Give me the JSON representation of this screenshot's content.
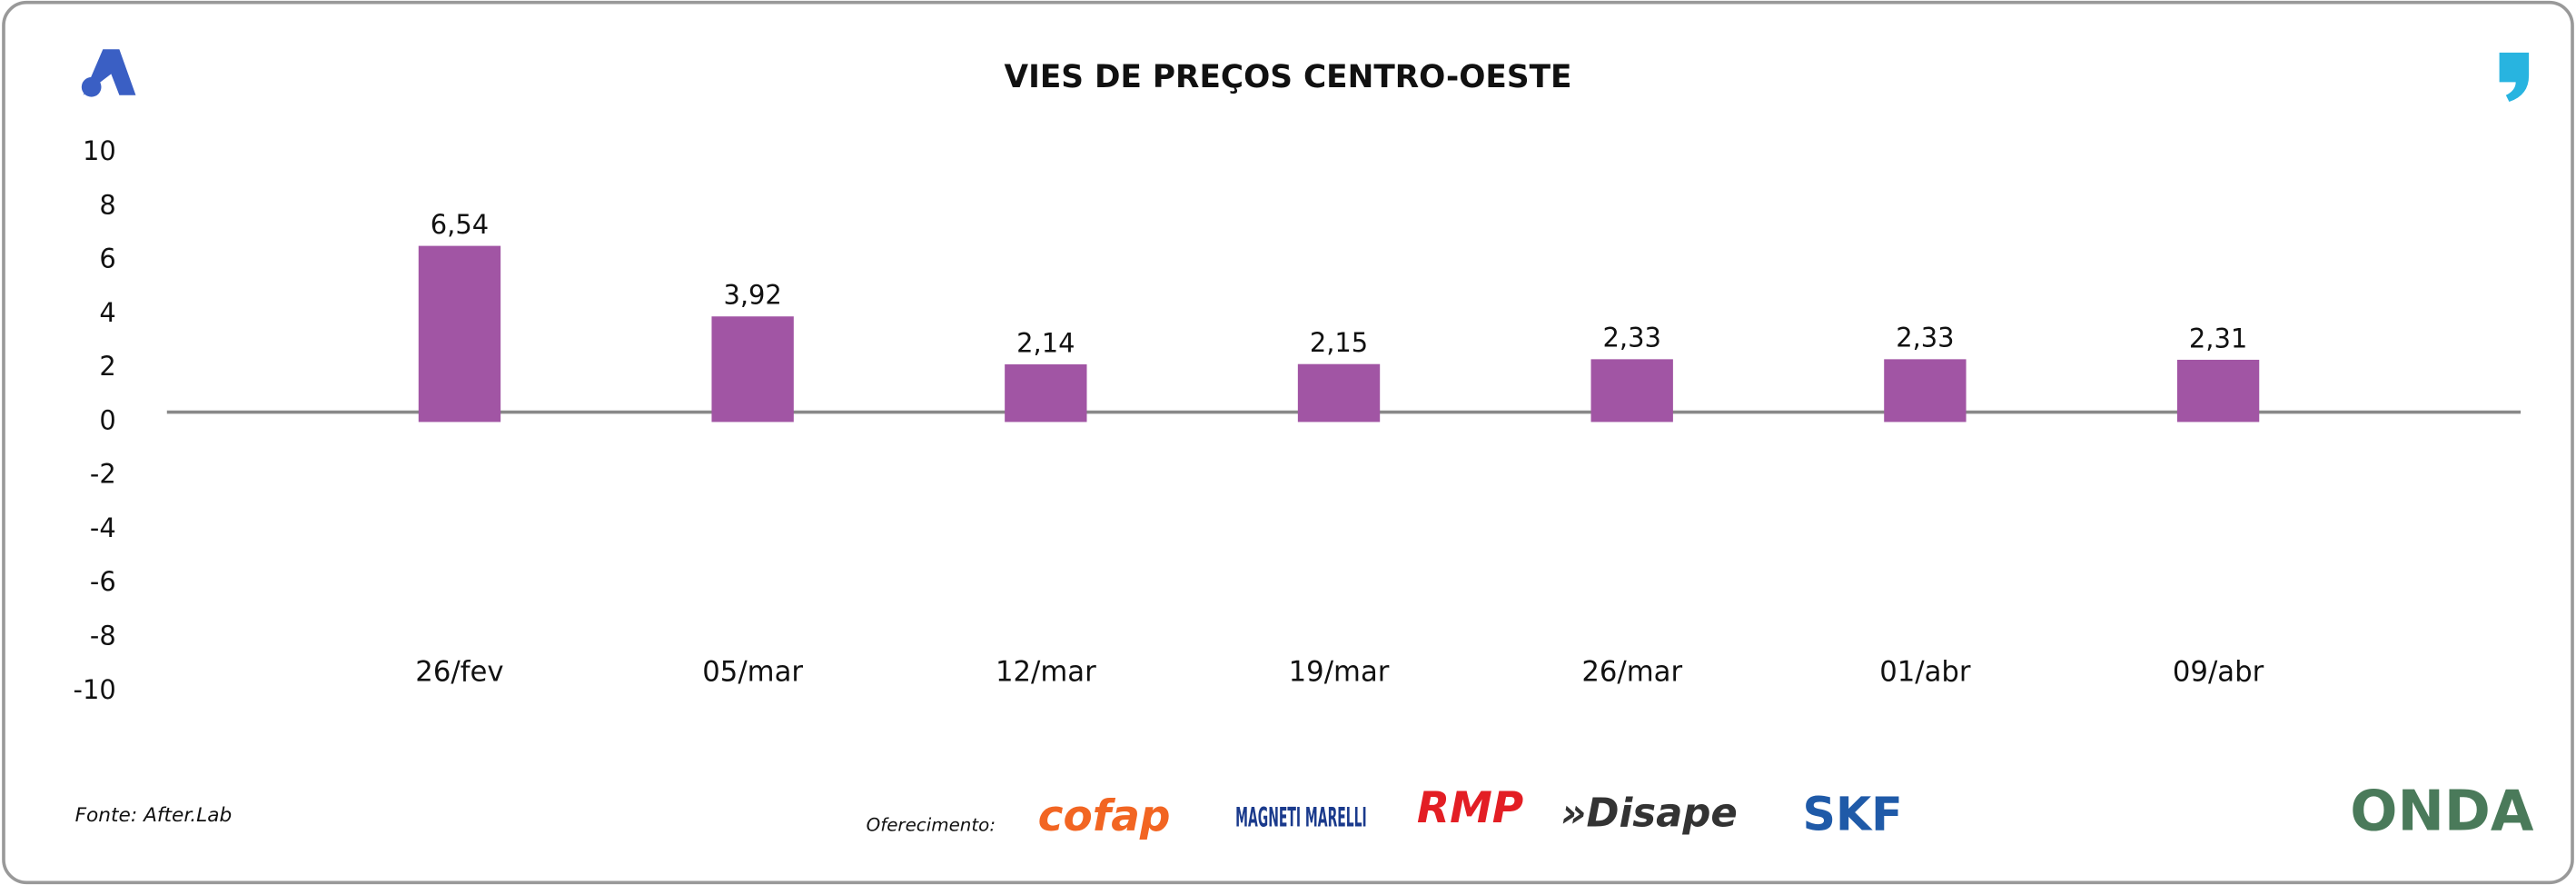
{
  "chart_data": {
    "type": "bar",
    "title": "VIES DE PREÇOS CENTRO-OESTE",
    "categories": [
      "26/fev",
      "05/mar",
      "12/mar",
      "19/mar",
      "26/mar",
      "01/abr",
      "09/abr"
    ],
    "values": [
      6.54,
      3.92,
      2.14,
      2.15,
      2.33,
      2.33,
      2.31
    ],
    "value_labels": [
      "6,54",
      "3,92",
      "2,14",
      "2,15",
      "2,33",
      "2,33",
      "2,31"
    ],
    "color": "#a155a4",
    "ylim": [
      -10,
      10
    ],
    "yticks": [
      -10,
      -8,
      -6,
      -4,
      -2,
      0,
      2,
      4,
      6,
      8,
      10
    ],
    "grid": false
  },
  "footer": {
    "source": "Fonte: After.Lab",
    "sponsor_label": "Oferecimento:",
    "sponsors": [
      "cofap",
      "MAGNETI MARELLI",
      "RMP",
      "»Disape",
      "SKF"
    ],
    "brand": "ONDA"
  }
}
